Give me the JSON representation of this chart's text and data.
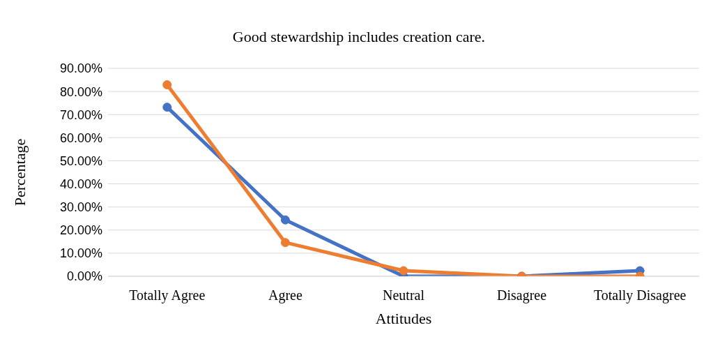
{
  "chart_data": {
    "type": "line",
    "title": "Good stewardship includes creation care.",
    "xlabel": "Attitudes",
    "ylabel": "Percentage",
    "categories": [
      "Totally Agree",
      "Agree",
      "Neutral",
      "Disagree",
      "Totally Disagree"
    ],
    "series": [
      {
        "color": "#4472c4",
        "values": [
          73.2,
          24.4,
          0,
          0,
          2.4
        ]
      },
      {
        "color": "#ed7d31",
        "values": [
          82.9,
          14.6,
          2.4,
          0,
          0
        ]
      }
    ],
    "ylim": [
      0,
      90
    ],
    "yticks": [
      {
        "value": 0,
        "label": "0.00%"
      },
      {
        "value": 10,
        "label": "10.00%"
      },
      {
        "value": 20,
        "label": "20.00%"
      },
      {
        "value": 30,
        "label": "30.00%"
      },
      {
        "value": 40,
        "label": "40.00%"
      },
      {
        "value": 50,
        "label": "50.00%"
      },
      {
        "value": 60,
        "label": "60.00%"
      },
      {
        "value": 70,
        "label": "70.00%"
      },
      {
        "value": 80,
        "label": "80.00%"
      },
      {
        "value": 90,
        "label": "90.00%"
      }
    ],
    "grid": "y",
    "marker": "circle",
    "line_style": "solid"
  }
}
